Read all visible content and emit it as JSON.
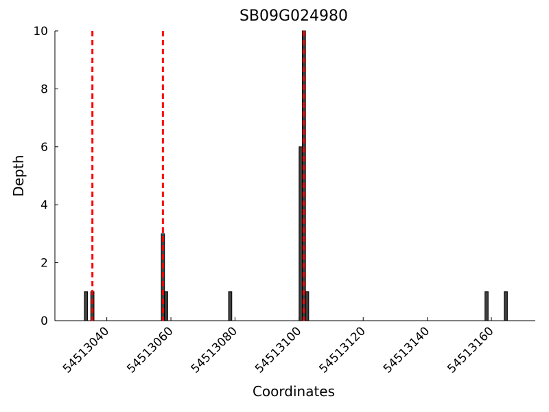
{
  "chart_data": {
    "type": "bar",
    "title": "SB09G024980",
    "x_label": "Coordinates",
    "y_label": "Depth",
    "x": [
      54513033,
      54513035,
      54513057,
      54513058,
      54513078,
      54513100,
      54513101,
      54513102,
      54513158,
      54513164
    ],
    "values": [
      1,
      1,
      3,
      1,
      1,
      6,
      10,
      1,
      1,
      1
    ],
    "bar_width": 1,
    "color": "#404040",
    "edge_color": "#000000",
    "vlines": [
      54513035.5,
      54513057.5,
      54513101.5
    ],
    "vline_color": "#ff0000",
    "xlim": [
      54513023.8,
      54513173.7
    ],
    "xticks": [
      54513040,
      54513060,
      54513080,
      54513100,
      54513120,
      54513140,
      54513160
    ],
    "ylim": [
      0,
      10
    ],
    "yticks": [
      0,
      2,
      4,
      6,
      8,
      10
    ]
  }
}
